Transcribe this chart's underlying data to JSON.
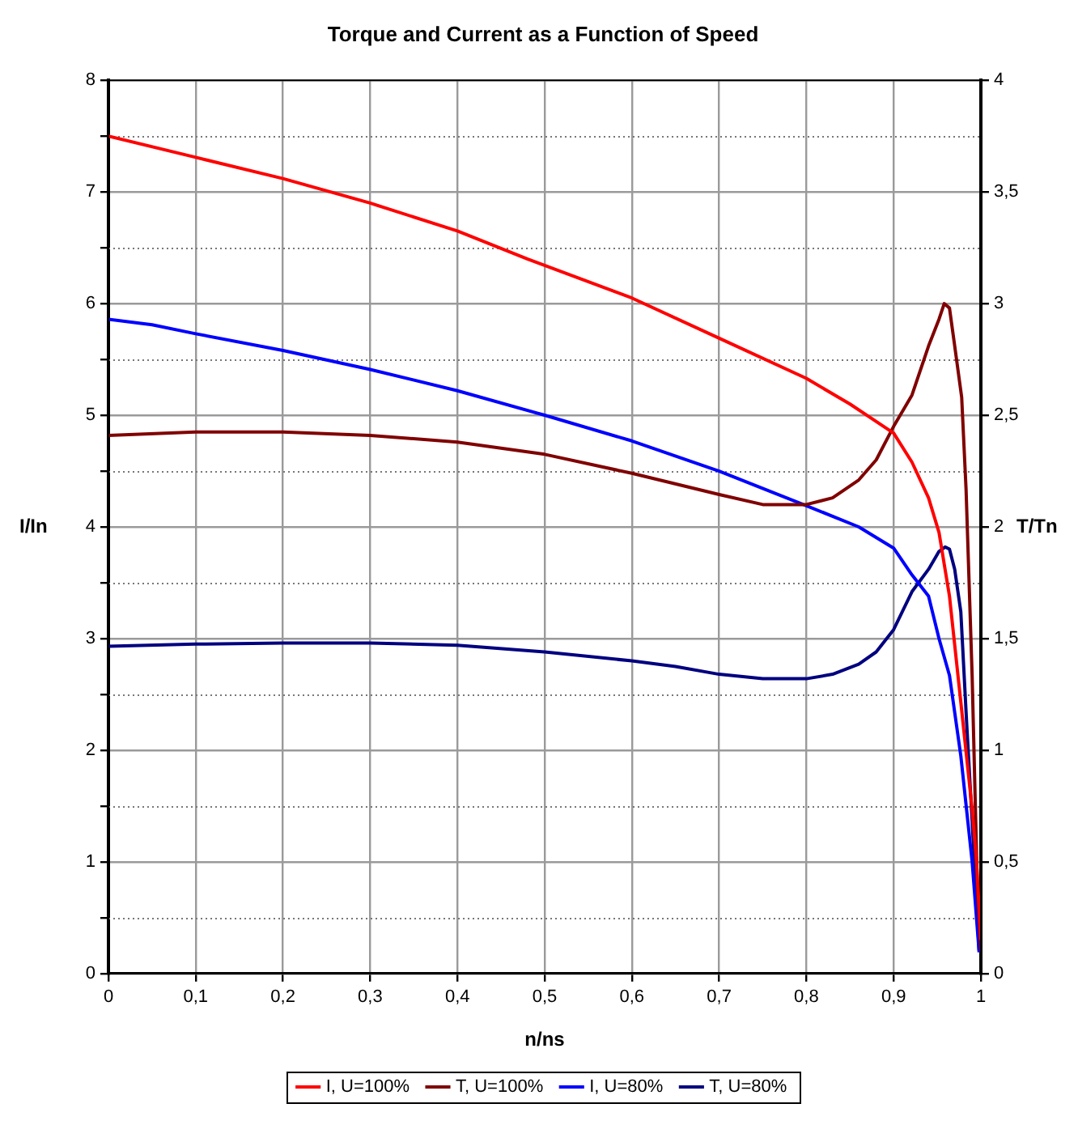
{
  "chart_data": {
    "type": "line",
    "title": "Torque and Current as a Function of Speed",
    "xlabel": "n/ns",
    "ylabel": "I/In",
    "y2label": "T/Tn",
    "xlim": [
      0,
      1
    ],
    "xticks": [
      0,
      {
        "value": 0.1,
        "label": "0,1"
      },
      {
        "value": 0.2,
        "label": "0,2"
      },
      {
        "value": 0.3,
        "label": "0,3"
      },
      {
        "value": 0.4,
        "label": "0,4"
      },
      {
        "value": 0.5,
        "label": "0,5"
      },
      {
        "value": 0.6,
        "label": "0,6"
      },
      {
        "value": 0.7,
        "label": "0,7"
      },
      {
        "value": 0.8,
        "label": "0,8"
      },
      {
        "value": 0.9,
        "label": "0,9"
      },
      1
    ],
    "ylim": [
      0,
      8
    ],
    "yticks": [
      0,
      {
        "value": 0.5,
        "label": null
      },
      1,
      {
        "value": 1.5,
        "label": null
      },
      2,
      {
        "value": 2.5,
        "label": null
      },
      3,
      {
        "value": 3.5,
        "label": null
      },
      4,
      {
        "value": 4.5,
        "label": null
      },
      5,
      {
        "value": 5.5,
        "label": null
      },
      6,
      {
        "value": 6.5,
        "label": null
      },
      7,
      {
        "value": 7.5,
        "label": null
      },
      8
    ],
    "y2lim": [
      0,
      4
    ],
    "y2ticks": [
      0,
      {
        "value": 0.5,
        "label": "0,5"
      },
      1,
      {
        "value": 1.5,
        "label": "1,5"
      },
      2,
      {
        "value": 2.5,
        "label": "2,5"
      },
      3,
      {
        "value": 3.5,
        "label": "3,5"
      },
      4
    ],
    "grid": true,
    "legend": "bottom",
    "line_style": "solid",
    "series": [
      {
        "name": "I, U=100%",
        "color": "#ff0000",
        "x": [
          0,
          0.1,
          0.2,
          0.3,
          0.4,
          0.48,
          0.6,
          0.7,
          0.8,
          0.85,
          0.9,
          0.921,
          0.94,
          0.952,
          0.964,
          0.977,
          0.99,
          0.995,
          1
        ],
        "values": [
          7.5,
          7.31,
          7.12,
          6.9,
          6.65,
          6.4,
          6.05,
          5.69,
          5.33,
          5.1,
          4.84,
          4.58,
          4.26,
          3.95,
          3.38,
          2.43,
          1.47,
          1.0,
          0.3
        ]
      },
      {
        "name": "T, U=100%",
        "color": "#800000",
        "axis": "y2",
        "x": [
          0,
          0.1,
          0.2,
          0.3,
          0.4,
          0.5,
          0.6,
          0.7,
          0.75,
          0.8,
          0.83,
          0.86,
          0.88,
          0.9,
          0.921,
          0.94,
          0.952,
          0.958,
          0.964,
          0.97,
          0.978,
          0.983,
          0.99,
          0.996,
          1
        ],
        "values": [
          2.41,
          2.425,
          2.425,
          2.41,
          2.38,
          2.325,
          2.24,
          2.145,
          2.1,
          2.1,
          2.13,
          2.21,
          2.3,
          2.45,
          2.59,
          2.81,
          2.93,
          3.0,
          2.98,
          2.81,
          2.58,
          2.17,
          1.33,
          0.38,
          0.1
        ]
      },
      {
        "name": "I, U=80%",
        "color": "#0000ff",
        "x": [
          0,
          0.05,
          0.1,
          0.2,
          0.3,
          0.4,
          0.5,
          0.6,
          0.7,
          0.8,
          0.86,
          0.9,
          0.921,
          0.94,
          0.952,
          0.964,
          0.977,
          0.99,
          0.998
        ],
        "values": [
          5.86,
          5.81,
          5.73,
          5.58,
          5.41,
          5.22,
          5.0,
          4.77,
          4.5,
          4.19,
          4.0,
          3.81,
          3.57,
          3.38,
          3.0,
          2.67,
          1.95,
          1.0,
          0.19
        ]
      },
      {
        "name": "T, U=80%",
        "color": "#000080",
        "axis": "y2",
        "x": [
          0,
          0.1,
          0.2,
          0.3,
          0.4,
          0.5,
          0.6,
          0.65,
          0.7,
          0.75,
          0.8,
          0.83,
          0.86,
          0.88,
          0.9,
          0.921,
          0.94,
          0.952,
          0.959,
          0.964,
          0.97,
          0.977,
          0.984,
          0.991,
          0.998
        ],
        "values": [
          1.465,
          1.475,
          1.48,
          1.48,
          1.47,
          1.44,
          1.4,
          1.375,
          1.34,
          1.32,
          1.32,
          1.34,
          1.385,
          1.44,
          1.54,
          1.71,
          1.81,
          1.89,
          1.91,
          1.9,
          1.81,
          1.62,
          1.1,
          0.61,
          0.1
        ]
      }
    ]
  }
}
